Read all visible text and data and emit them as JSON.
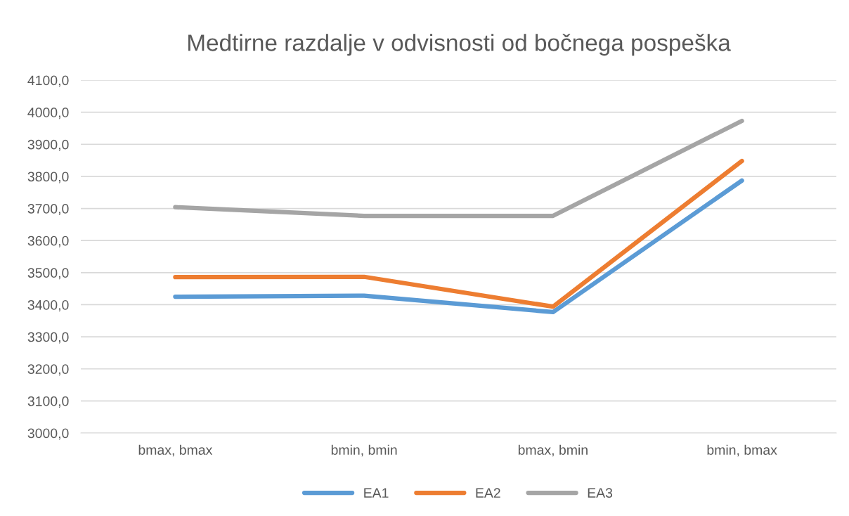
{
  "chart_data": {
    "type": "line",
    "title": "Medtirne razdalje v odvisnosti od bočnega pospeška",
    "categories": [
      "bmax, bmax",
      "bmin, bmin",
      "bmax, bmin",
      "bmin, bmax"
    ],
    "series": [
      {
        "name": "EA1",
        "color": "#5b9bd5",
        "values": [
          3425,
          3428,
          3377,
          3787
        ]
      },
      {
        "name": "EA2",
        "color": "#ed7d31",
        "values": [
          3486,
          3487,
          3394,
          3848
        ]
      },
      {
        "name": "EA3",
        "color": "#a5a5a5",
        "values": [
          3704,
          3677,
          3677,
          3973
        ]
      }
    ],
    "ylim": [
      3000,
      4100
    ],
    "yticks": [
      {
        "value": 3000,
        "label": "3000,0"
      },
      {
        "value": 3100,
        "label": "3100,0"
      },
      {
        "value": 3200,
        "label": "3200,0"
      },
      {
        "value": 3300,
        "label": "3300,0"
      },
      {
        "value": 3400,
        "label": "3400,0"
      },
      {
        "value": 3500,
        "label": "3500,0"
      },
      {
        "value": 3600,
        "label": "3600,0"
      },
      {
        "value": 3700,
        "label": "3700,0"
      },
      {
        "value": 3800,
        "label": "3800,0"
      },
      {
        "value": 3900,
        "label": "3900,0"
      },
      {
        "value": 4000,
        "label": "4000,0"
      },
      {
        "value": 4100,
        "label": "4100,0"
      }
    ],
    "grid": "y",
    "legend": "bottom",
    "marker": "none",
    "line_style": "solid"
  }
}
